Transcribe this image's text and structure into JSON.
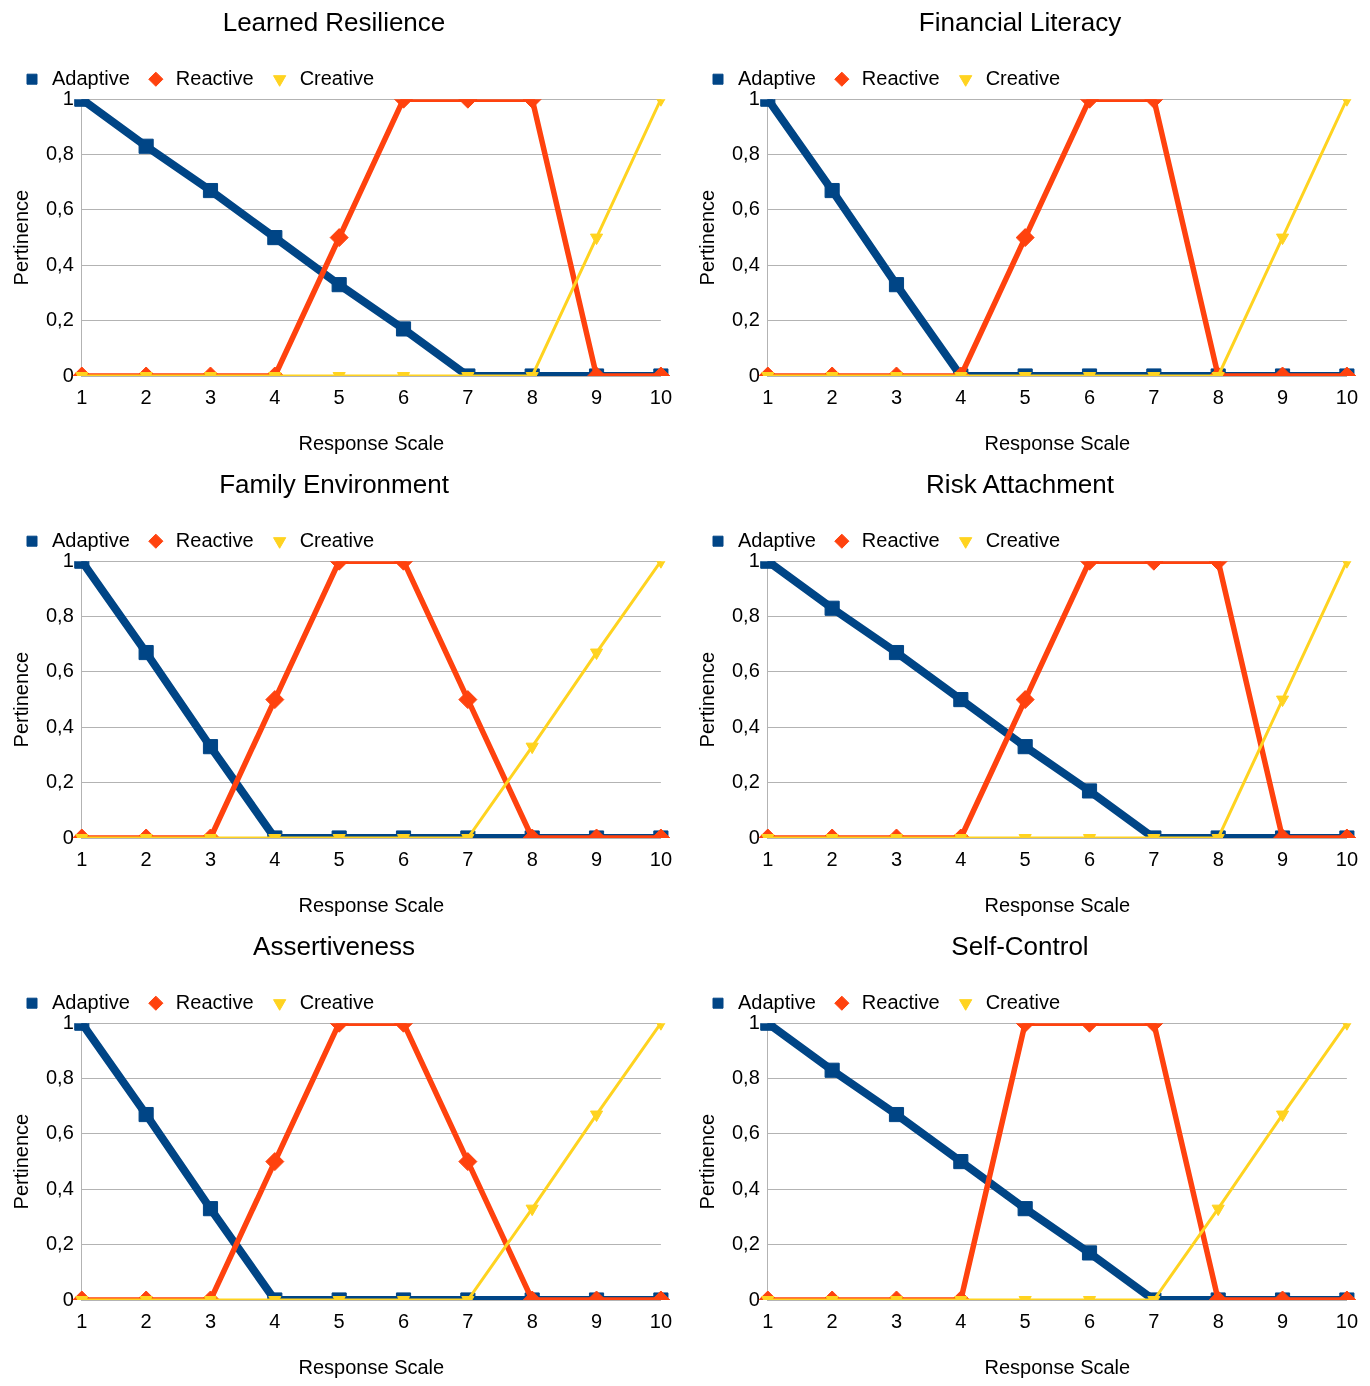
{
  "chart_data": [
    {
      "type": "line",
      "title": "Learned Resilience",
      "xlabel": "Response Scale",
      "ylabel": "Pertinence",
      "categories": [
        "1",
        "2",
        "3",
        "4",
        "5",
        "6",
        "7",
        "8",
        "9",
        "10"
      ],
      "ylim": [
        0,
        1
      ],
      "yticks": [
        {
          "value": 0,
          "label": "0"
        },
        {
          "value": 0.2,
          "label": "0,2"
        },
        {
          "value": 0.4,
          "label": "0,4"
        },
        {
          "value": 0.6,
          "label": "0,6"
        },
        {
          "value": 0.8,
          "label": "0,8"
        },
        {
          "value": 1,
          "label": "1"
        }
      ],
      "grid": "y",
      "legend": "top",
      "line_style": "solid",
      "series": [
        {
          "name": "Adaptive",
          "color": "#004586",
          "marker": "square",
          "values": [
            1,
            0.83,
            0.67,
            0.5,
            0.33,
            0.17,
            0,
            0,
            0,
            0
          ]
        },
        {
          "name": "Reactive",
          "color": "#ff420e",
          "marker": "diamond",
          "values": [
            0,
            0,
            0,
            0,
            0.5,
            1,
            1,
            1,
            0,
            0
          ]
        },
        {
          "name": "Creative",
          "color": "#ffd320",
          "marker": "triangle",
          "values": [
            0,
            0,
            0,
            0,
            0,
            0,
            0,
            0,
            0.5,
            1
          ]
        }
      ]
    },
    {
      "type": "line",
      "title": "Financial Literacy",
      "xlabel": "Response Scale",
      "ylabel": "Pertinence",
      "categories": [
        "1",
        "2",
        "3",
        "4",
        "5",
        "6",
        "7",
        "8",
        "9",
        "10"
      ],
      "ylim": [
        0,
        1
      ],
      "yticks": [
        {
          "value": 0,
          "label": "0"
        },
        {
          "value": 0.2,
          "label": "0,2"
        },
        {
          "value": 0.4,
          "label": "0,4"
        },
        {
          "value": 0.6,
          "label": "0,6"
        },
        {
          "value": 0.8,
          "label": "0,8"
        },
        {
          "value": 1,
          "label": "1"
        }
      ],
      "grid": "y",
      "legend": "top",
      "line_style": "solid",
      "series": [
        {
          "name": "Adaptive",
          "color": "#004586",
          "marker": "square",
          "values": [
            1,
            0.67,
            0.33,
            0,
            0,
            0,
            0,
            0,
            0,
            0
          ]
        },
        {
          "name": "Reactive",
          "color": "#ff420e",
          "marker": "diamond",
          "values": [
            0,
            0,
            0,
            0,
            0.5,
            1,
            1,
            0,
            0,
            0
          ]
        },
        {
          "name": "Creative",
          "color": "#ffd320",
          "marker": "triangle",
          "values": [
            0,
            0,
            0,
            0,
            0,
            0,
            0,
            0,
            0.5,
            1
          ]
        }
      ]
    },
    {
      "type": "line",
      "title": "Family Environment",
      "xlabel": "Response Scale",
      "ylabel": "Pertinence",
      "categories": [
        "1",
        "2",
        "3",
        "4",
        "5",
        "6",
        "7",
        "8",
        "9",
        "10"
      ],
      "ylim": [
        0,
        1
      ],
      "yticks": [
        {
          "value": 0,
          "label": "0"
        },
        {
          "value": 0.2,
          "label": "0,2"
        },
        {
          "value": 0.4,
          "label": "0,4"
        },
        {
          "value": 0.6,
          "label": "0,6"
        },
        {
          "value": 0.8,
          "label": "0,8"
        },
        {
          "value": 1,
          "label": "1"
        }
      ],
      "grid": "y",
      "legend": "top",
      "line_style": "solid",
      "series": [
        {
          "name": "Adaptive",
          "color": "#004586",
          "marker": "square",
          "values": [
            1,
            0.67,
            0.33,
            0,
            0,
            0,
            0,
            0,
            0,
            0
          ]
        },
        {
          "name": "Reactive",
          "color": "#ff420e",
          "marker": "diamond",
          "values": [
            0,
            0,
            0,
            0.5,
            1,
            1,
            0.5,
            0,
            0,
            0
          ]
        },
        {
          "name": "Creative",
          "color": "#ffd320",
          "marker": "triangle",
          "values": [
            0,
            0,
            0,
            0,
            0,
            0,
            0,
            0.33,
            0.67,
            1
          ]
        }
      ]
    },
    {
      "type": "line",
      "title": "Risk Attachment",
      "xlabel": "Response Scale",
      "ylabel": "Pertinence",
      "categories": [
        "1",
        "2",
        "3",
        "4",
        "5",
        "6",
        "7",
        "8",
        "9",
        "10"
      ],
      "ylim": [
        0,
        1
      ],
      "yticks": [
        {
          "value": 0,
          "label": "0"
        },
        {
          "value": 0.2,
          "label": "0,2"
        },
        {
          "value": 0.4,
          "label": "0,4"
        },
        {
          "value": 0.6,
          "label": "0,6"
        },
        {
          "value": 0.8,
          "label": "0,8"
        },
        {
          "value": 1,
          "label": "1"
        }
      ],
      "grid": "y",
      "legend": "top",
      "line_style": "solid",
      "series": [
        {
          "name": "Adaptive",
          "color": "#004586",
          "marker": "square",
          "values": [
            1,
            0.83,
            0.67,
            0.5,
            0.33,
            0.17,
            0,
            0,
            0,
            0
          ]
        },
        {
          "name": "Reactive",
          "color": "#ff420e",
          "marker": "diamond",
          "values": [
            0,
            0,
            0,
            0,
            0.5,
            1,
            1,
            1,
            0,
            0
          ]
        },
        {
          "name": "Creative",
          "color": "#ffd320",
          "marker": "triangle",
          "values": [
            0,
            0,
            0,
            0,
            0,
            0,
            0,
            0,
            0.5,
            1
          ]
        }
      ]
    },
    {
      "type": "line",
      "title": "Assertiveness",
      "xlabel": "Response Scale",
      "ylabel": "Pertinence",
      "categories": [
        "1",
        "2",
        "3",
        "4",
        "5",
        "6",
        "7",
        "8",
        "9",
        "10"
      ],
      "ylim": [
        0,
        1
      ],
      "yticks": [
        {
          "value": 0,
          "label": "0"
        },
        {
          "value": 0.2,
          "label": "0,2"
        },
        {
          "value": 0.4,
          "label": "0,4"
        },
        {
          "value": 0.6,
          "label": "0,6"
        },
        {
          "value": 0.8,
          "label": "0,8"
        },
        {
          "value": 1,
          "label": "1"
        }
      ],
      "grid": "y",
      "legend": "top",
      "line_style": "solid",
      "series": [
        {
          "name": "Adaptive",
          "color": "#004586",
          "marker": "square",
          "values": [
            1,
            0.67,
            0.33,
            0,
            0,
            0,
            0,
            0,
            0,
            0
          ]
        },
        {
          "name": "Reactive",
          "color": "#ff420e",
          "marker": "diamond",
          "values": [
            0,
            0,
            0,
            0.5,
            1,
            1,
            0.5,
            0,
            0,
            0
          ]
        },
        {
          "name": "Creative",
          "color": "#ffd320",
          "marker": "triangle",
          "values": [
            0,
            0,
            0,
            0,
            0,
            0,
            0,
            0.33,
            0.67,
            1
          ]
        }
      ]
    },
    {
      "type": "line",
      "title": "Self-Control",
      "xlabel": "Response Scale",
      "ylabel": "Pertinence",
      "categories": [
        "1",
        "2",
        "3",
        "4",
        "5",
        "6",
        "7",
        "8",
        "9",
        "10"
      ],
      "ylim": [
        0,
        1
      ],
      "yticks": [
        {
          "value": 0,
          "label": "0"
        },
        {
          "value": 0.2,
          "label": "0,2"
        },
        {
          "value": 0.4,
          "label": "0,4"
        },
        {
          "value": 0.6,
          "label": "0,6"
        },
        {
          "value": 0.8,
          "label": "0,8"
        },
        {
          "value": 1,
          "label": "1"
        }
      ],
      "grid": "y",
      "legend": "top",
      "line_style": "solid",
      "series": [
        {
          "name": "Adaptive",
          "color": "#004586",
          "marker": "square",
          "values": [
            1,
            0.83,
            0.67,
            0.5,
            0.33,
            0.17,
            0,
            0,
            0,
            0
          ]
        },
        {
          "name": "Reactive",
          "color": "#ff420e",
          "marker": "diamond",
          "values": [
            0,
            0,
            0,
            0,
            1,
            1,
            1,
            0,
            0,
            0
          ]
        },
        {
          "name": "Creative",
          "color": "#ffd320",
          "marker": "triangle",
          "values": [
            0,
            0,
            0,
            0,
            0,
            0,
            0,
            0.33,
            0.67,
            1
          ]
        }
      ]
    }
  ]
}
